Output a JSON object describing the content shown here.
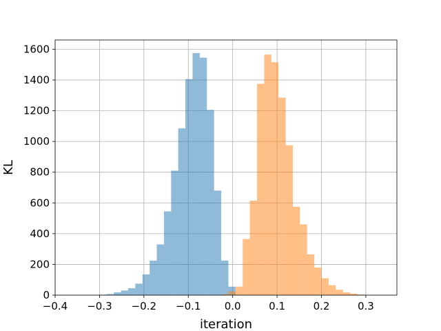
{
  "chart_data": {
    "type": "histogram",
    "title": "",
    "xlabel": "iteration",
    "ylabel": "KL",
    "xlim": [
      -0.4,
      0.37
    ],
    "ylim": [
      0,
      1660
    ],
    "xticks": [
      -0.4,
      -0.3,
      -0.2,
      -0.1,
      0.0,
      0.1,
      0.2,
      0.3
    ],
    "xtick_labels": [
      "−0.4",
      "−0.3",
      "−0.2",
      "−0.1",
      "0.0",
      "0.1",
      "0.2",
      "0.3"
    ],
    "yticks": [
      0,
      200,
      400,
      600,
      800,
      1000,
      1200,
      1400,
      1600
    ],
    "ytick_labels": [
      "0",
      "200",
      "400",
      "600",
      "800",
      "1000",
      "1200",
      "1400",
      "1600"
    ],
    "grid": true,
    "legend": false,
    "series": [
      {
        "color": "#1f77b4",
        "opacity": 0.5,
        "bin_edges": [
          -0.3,
          -0.2839,
          -0.2677,
          -0.2516,
          -0.2355,
          -0.2194,
          -0.2032,
          -0.1871,
          -0.171,
          -0.1548,
          -0.1387,
          -0.1226,
          -0.1065,
          -0.0903,
          -0.0742,
          -0.0581,
          -0.0419,
          -0.0258,
          -0.0097,
          0.0065
        ],
        "counts": [
          3,
          7,
          18,
          30,
          45,
          75,
          135,
          225,
          330,
          545,
          810,
          1085,
          1405,
          1575,
          1545,
          1205,
          680,
          225,
          55
        ]
      },
      {
        "color": "#ff7f0e",
        "opacity": 0.5,
        "bin_edges": [
          -0.0258,
          -0.0097,
          0.0065,
          0.0226,
          0.0387,
          0.0548,
          0.071,
          0.0871,
          0.1032,
          0.1194,
          0.1355,
          0.1516,
          0.1677,
          0.1839,
          0.2,
          0.2161,
          0.2323,
          0.2484,
          0.2645,
          0.2806,
          0.2968
        ],
        "counts": [
          5,
          25,
          55,
          365,
          615,
          1375,
          1565,
          1515,
          1285,
          975,
          575,
          460,
          265,
          180,
          110,
          65,
          35,
          18,
          10,
          4
        ]
      }
    ]
  }
}
